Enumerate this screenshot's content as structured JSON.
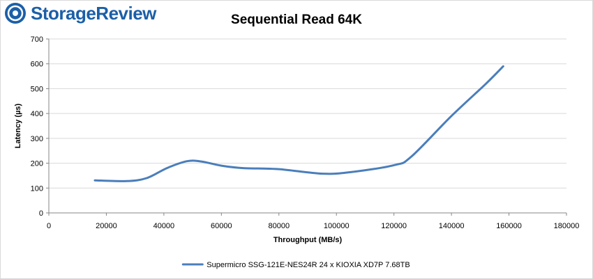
{
  "brand": {
    "logo_text": "StorageReview",
    "logo_icon": "storagereview-logo-icon",
    "color": "#1b5fa8"
  },
  "chart_data": {
    "type": "line",
    "title": "Sequential Read 64K",
    "xlabel": "Throughput (MB/s)",
    "ylabel": "Latency (µs)",
    "xlim": [
      0,
      180000
    ],
    "ylim": [
      0,
      700
    ],
    "xticks": [
      0,
      20000,
      40000,
      60000,
      80000,
      100000,
      120000,
      140000,
      160000,
      180000
    ],
    "yticks": [
      0,
      100,
      200,
      300,
      400,
      500,
      600,
      700
    ],
    "grid": true,
    "legend_position": "bottom",
    "series": [
      {
        "name": "Supermicro SSG-121E-NES24R 24 x KIOXIA XD7P 7.68TB",
        "color": "#4a7ebb",
        "x": [
          16000,
          27000,
          34000,
          41000,
          48000,
          53000,
          60000,
          68000,
          80000,
          95000,
          105000,
          120000,
          126000,
          140000,
          152000,
          158000
        ],
        "y": [
          131,
          128,
          140,
          180,
          208,
          207,
          190,
          180,
          176,
          158,
          164,
          192,
          226,
          390,
          520,
          590
        ]
      }
    ]
  }
}
